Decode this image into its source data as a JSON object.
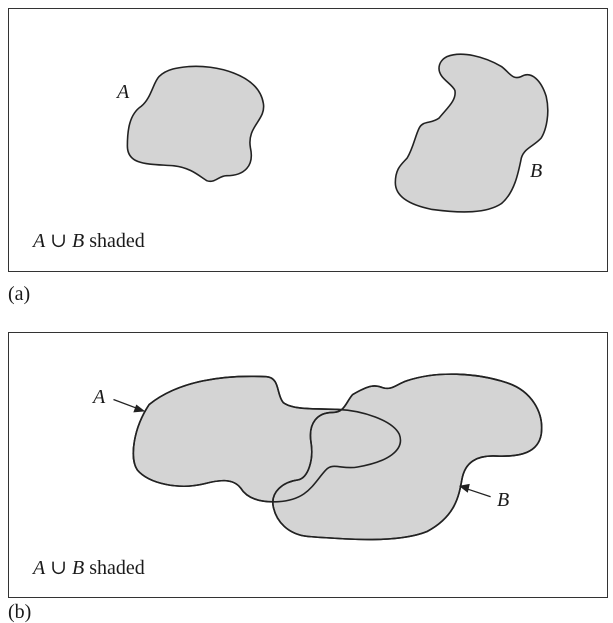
{
  "panels": [
    {
      "tag": "(a)",
      "set_a_label": "A",
      "set_b_label": "B",
      "caption": {
        "set_a": "A",
        "union_symbol": "∪",
        "set_b": "B",
        "text": "shaded"
      },
      "relationship": "disjoint"
    },
    {
      "tag": "(b)",
      "set_a_label": "A",
      "set_b_label": "B",
      "caption": {
        "set_a": "A",
        "union_symbol": "∪",
        "set_b": "B",
        "text": "shaded"
      },
      "relationship": "overlapping"
    }
  ],
  "colors": {
    "fill": "#d4d4d4",
    "stroke": "#222222",
    "border": "#333333"
  }
}
